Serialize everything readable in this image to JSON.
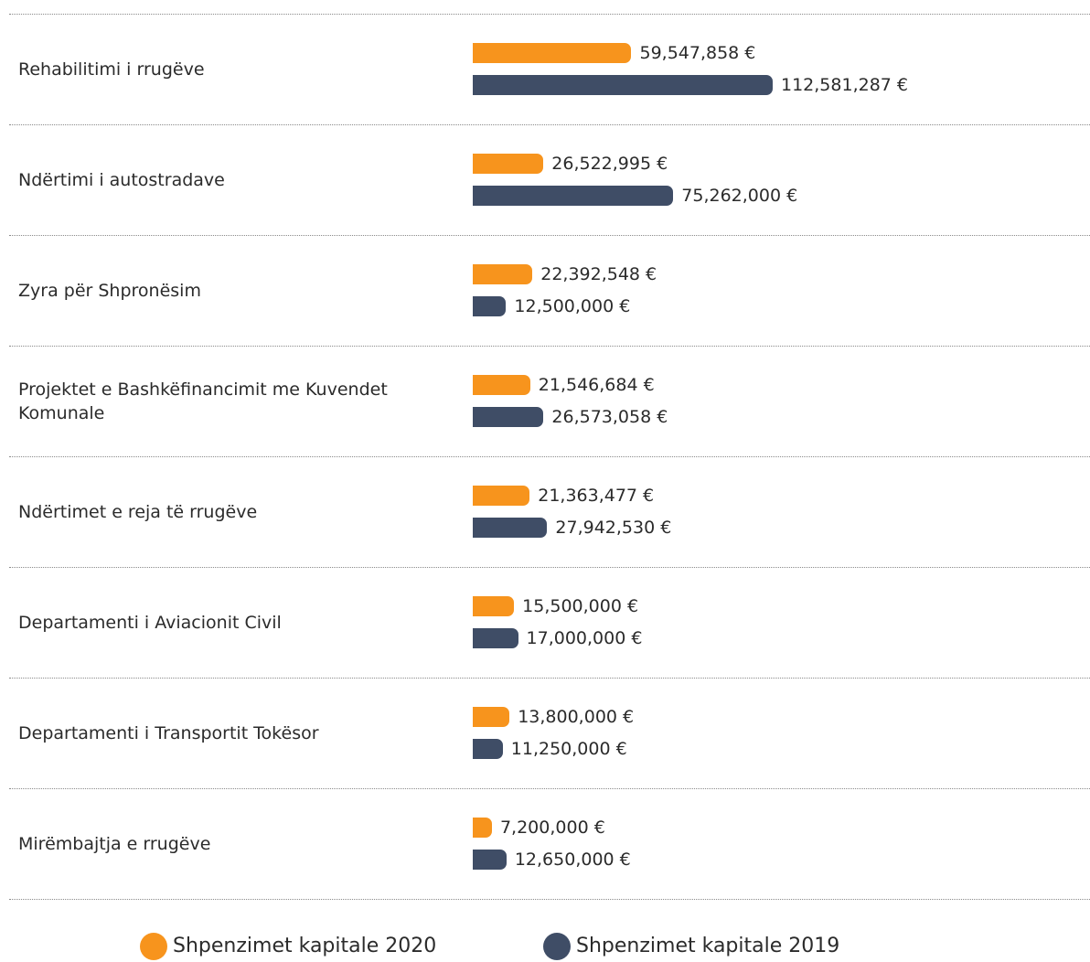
{
  "chart_data": {
    "type": "bar",
    "orientation": "horizontal",
    "categories": [
      "Rehabilitimi i rrugëve",
      "Ndërtimi i autostradave",
      "Zyra për Shpronësim",
      "Projektet e Bashkëfinancimit me Kuvendet Komunale",
      "Ndërtimet e reja të rrugëve",
      "Departamenti i Aviacionit Civil",
      "Departamenti  i Transportit Tokësor",
      "Mirëmbajtja e rrugëve"
    ],
    "series": [
      {
        "name": "Shpenzimet kapitale 2020",
        "color": "#f7941d",
        "values": [
          59547858,
          26522995,
          22392548,
          21546684,
          21363477,
          15500000,
          13800000,
          7200000
        ],
        "value_labels": [
          "59,547,858 €",
          "26,522,995 €",
          "22,392,548 €",
          "21,546,684 €",
          "21,363,477 €",
          "15,500,000 €",
          "13,800,000 €",
          "7,200,000 €"
        ]
      },
      {
        "name": "Shpenzimet kapitale 2019",
        "color": "#3f4d66",
        "values": [
          112581287,
          75262000,
          12500000,
          26573058,
          27942530,
          17000000,
          11250000,
          12650000
        ],
        "value_labels": [
          "112,581,287 €",
          "75,262,000 €",
          "12,500,000 €",
          "26,573,058 €",
          "27,942,530 €",
          "17,000,000 €",
          "11,250,000 €",
          "12,650,000 €"
        ]
      }
    ]
  }
}
